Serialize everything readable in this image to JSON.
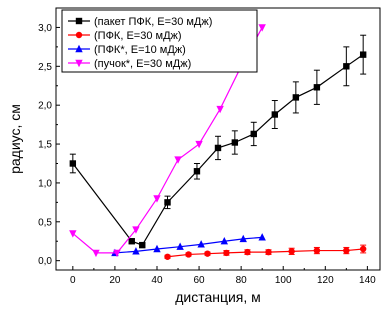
{
  "chart_data": {
    "type": "line",
    "xlabel": "дистанция, м",
    "ylabel": "радиус, см",
    "xlim": [
      -8,
      146
    ],
    "ylim": [
      -0.12,
      3.25
    ],
    "xticks": [
      0,
      20,
      40,
      60,
      80,
      100,
      120,
      140
    ],
    "yticks": [
      0.0,
      0.5,
      1.0,
      1.5,
      2.0,
      2.5,
      3.0
    ],
    "ytick_labels": [
      "0,0",
      "0,5",
      "1,0",
      "1,5",
      "2,0",
      "2,5",
      "3,0"
    ],
    "grid": false,
    "legend_position": "top-left",
    "series": [
      {
        "name": "(пакет ПФК, E=30 мДж)",
        "color": "#000000",
        "marker": "square",
        "x": [
          0,
          28,
          33,
          45,
          59,
          69,
          77,
          86,
          96,
          106,
          116,
          130,
          138
        ],
        "y": [
          1.25,
          0.25,
          0.2,
          0.75,
          1.15,
          1.45,
          1.52,
          1.63,
          1.88,
          2.1,
          2.23,
          2.5,
          2.65
        ],
        "err": [
          0.12,
          0.03,
          0.03,
          0.08,
          0.1,
          0.15,
          0.15,
          0.15,
          0.18,
          0.2,
          0.22,
          0.25,
          0.25
        ]
      },
      {
        "name": "(ПФК, E=30 мДж)",
        "color": "#ff0000",
        "marker": "circle",
        "x": [
          45,
          55,
          64,
          73,
          83,
          93,
          104,
          116,
          130,
          138
        ],
        "y": [
          0.05,
          0.08,
          0.09,
          0.1,
          0.11,
          0.11,
          0.12,
          0.13,
          0.13,
          0.15
        ],
        "err": [
          0.02,
          0.02,
          0.02,
          0.03,
          0.03,
          0.03,
          0.04,
          0.04,
          0.04,
          0.05
        ]
      },
      {
        "name": "(ПФК*, E=10 мДж)",
        "color": "#0000ff",
        "marker": "triangle-up",
        "x": [
          20,
          30,
          40,
          51,
          61,
          72,
          81,
          90
        ],
        "y": [
          0.1,
          0.12,
          0.15,
          0.18,
          0.21,
          0.25,
          0.28,
          0.3
        ],
        "err": null
      },
      {
        "name": "(пучок*, E=30 мДж)",
        "color": "#ff00ff",
        "marker": "triangle-down",
        "x": [
          0,
          11,
          21,
          30,
          40,
          50,
          60,
          70,
          80,
          90
        ],
        "y": [
          0.35,
          0.1,
          0.1,
          0.4,
          0.8,
          1.3,
          1.5,
          1.95,
          2.5,
          3.0
        ],
        "err": null
      }
    ]
  }
}
